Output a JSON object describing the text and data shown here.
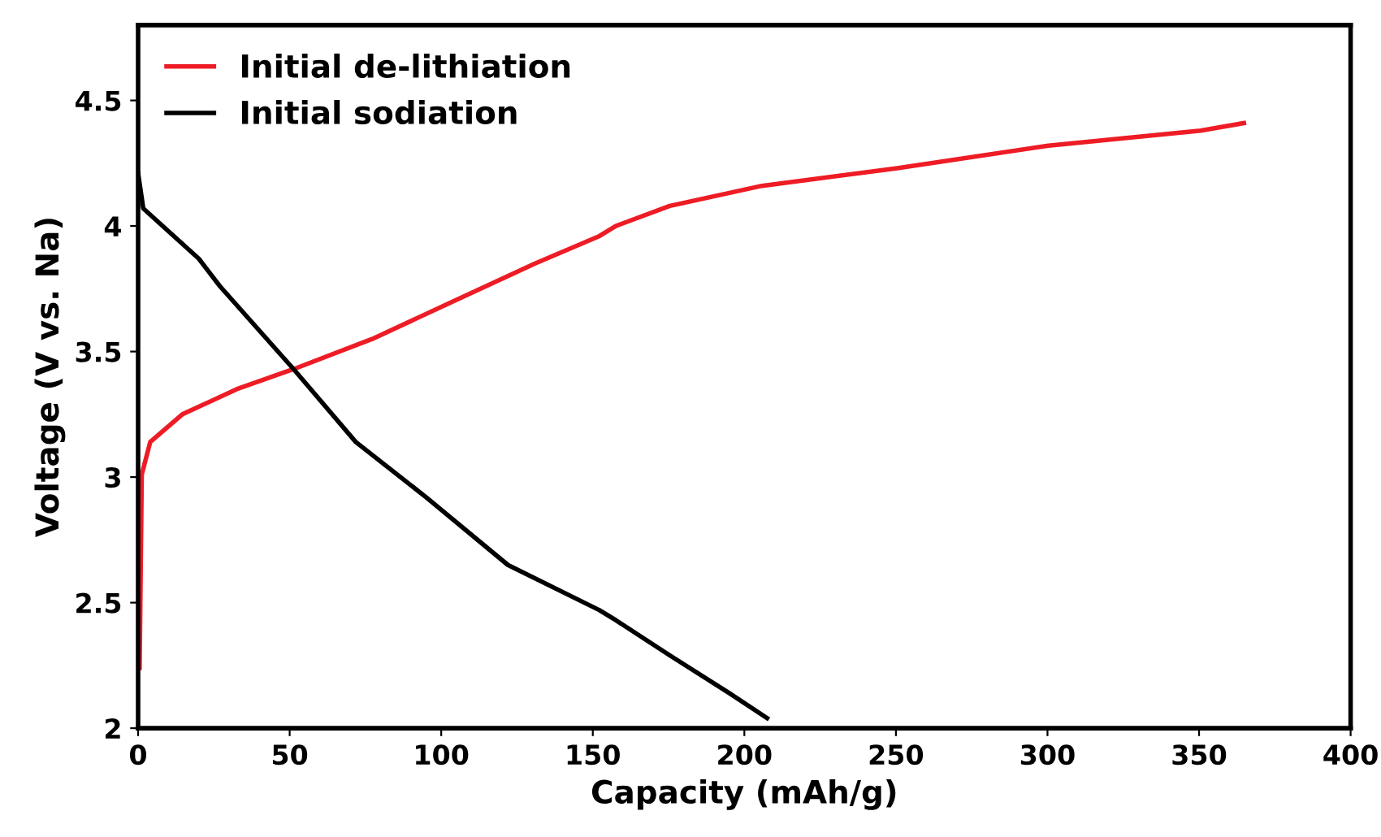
{
  "chart_data": {
    "type": "line",
    "xlabel": "Capacity (mAh/g)",
    "ylabel": "Voltage (V vs. Na)",
    "xlim": [
      0,
      400
    ],
    "xticks": [
      0,
      50,
      100,
      150,
      200,
      250,
      300,
      350,
      400
    ],
    "ylim": [
      2,
      4.8
    ],
    "yticks": [
      2,
      {
        "value": 2.5,
        "label": "2.5"
      },
      3,
      {
        "value": 3.5,
        "label": "3.5"
      },
      4,
      {
        "value": 4.5,
        "label": "4.5"
      }
    ],
    "grid": false,
    "legend": "top left",
    "marker": "none",
    "line_style": "solid",
    "series": [
      {
        "name": "Initial de-lithiation",
        "color": "#ee1c25",
        "x": [
          0.5,
          1.2,
          4,
          14.6,
          32.5,
          51.3,
          77.2,
          104,
          130.8,
          152.2,
          157.6,
          175.4,
          205.8,
          250.4,
          300.3,
          350.5,
          364.8
        ],
        "values": [
          2.24,
          3.01,
          3.14,
          3.25,
          3.35,
          3.43,
          3.55,
          3.7,
          3.85,
          3.96,
          4.0,
          4.08,
          4.16,
          4.23,
          4.32,
          4.38,
          4.41
        ]
      },
      {
        "name": "Initial sodiation",
        "color": "#000000",
        "x": [
          0,
          1.7,
          20,
          27,
          51.3,
          71.8,
          95,
          122,
          152.2,
          157.6,
          175.4,
          195,
          207.5
        ],
        "values": [
          4.21,
          4.07,
          3.87,
          3.76,
          3.43,
          3.14,
          2.92,
          2.65,
          2.47,
          2.43,
          2.29,
          2.14,
          2.04
        ]
      }
    ]
  }
}
